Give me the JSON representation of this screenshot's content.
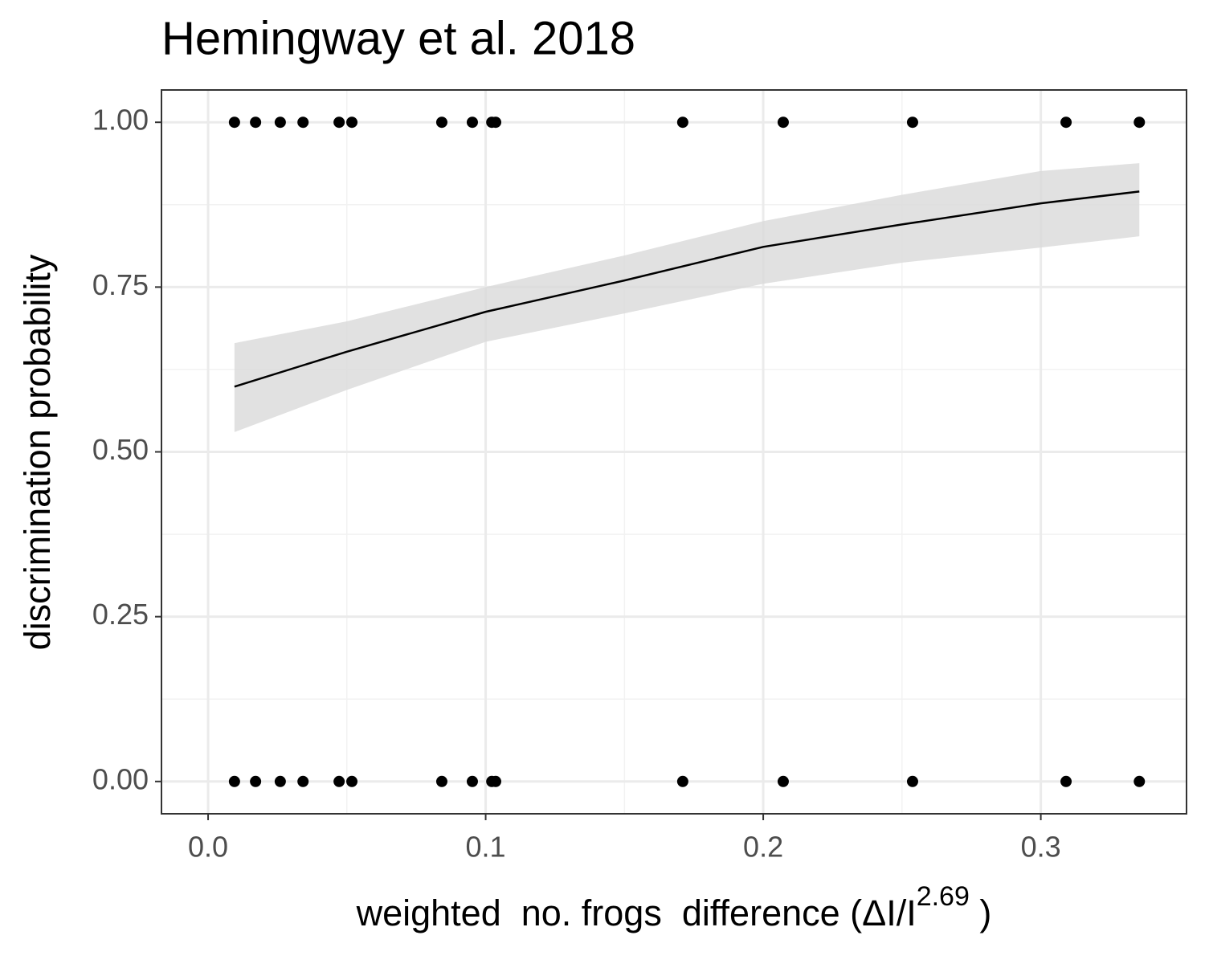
{
  "chart_data": {
    "type": "scatter",
    "title": "Hemingway et al. 2018",
    "xlabel": {
      "text": "weighted  no. frogs  difference (ΔI/I",
      "superscript": "2.69",
      "suffix": " )"
    },
    "ylabel": "discrimination probability",
    "xlim": [
      -0.0168,
      0.3525
    ],
    "ylim": [
      -0.049,
      1.049
    ],
    "xticks": [
      {
        "value": 0,
        "label": "0.0"
      },
      0.1,
      0.2,
      0.3
    ],
    "yticks": [
      {
        "value": 0,
        "label": "0.00"
      },
      {
        "value": 0.25,
        "label": "0.25"
      },
      {
        "value": 0.5,
        "label": "0.50"
      },
      {
        "value": 0.75,
        "label": "0.75"
      },
      {
        "value": 1,
        "label": "1.00"
      }
    ],
    "grid": true,
    "color": "#000000",
    "x": [
      0.0095,
      0.0171,
      0.026,
      0.0342,
      0.0472,
      0.0518,
      0.0842,
      0.0952,
      0.1022,
      0.1036,
      0.171,
      0.2072,
      0.2538,
      0.3091,
      0.3355,
      0.0095,
      0.0171,
      0.026,
      0.0342,
      0.0472,
      0.0518,
      0.0842,
      0.0952,
      0.1022,
      0.1036,
      0.171,
      0.2072,
      0.2538,
      0.3091,
      0.3355
    ],
    "values": [
      1,
      1,
      1,
      1,
      1,
      1,
      1,
      1,
      1,
      1,
      1,
      1,
      1,
      1,
      1,
      0,
      0,
      0,
      0,
      0,
      0,
      0,
      0,
      0,
      0,
      0,
      0,
      0,
      0,
      0
    ],
    "fit": {
      "color": "#000000",
      "band_color": "#d9d9d9",
      "x": [
        0.0095,
        0.05,
        0.1,
        0.15,
        0.2,
        0.25,
        0.3,
        0.3355
      ],
      "values": [
        0.599,
        0.652,
        0.7125,
        0.76,
        0.811,
        0.845,
        0.877,
        0.895
      ],
      "upper": [
        0.665,
        0.698,
        0.75,
        0.798,
        0.85,
        0.89,
        0.926,
        0.938
      ],
      "lower": [
        0.53,
        0.594,
        0.667,
        0.71,
        0.755,
        0.787,
        0.81,
        0.827
      ]
    }
  }
}
